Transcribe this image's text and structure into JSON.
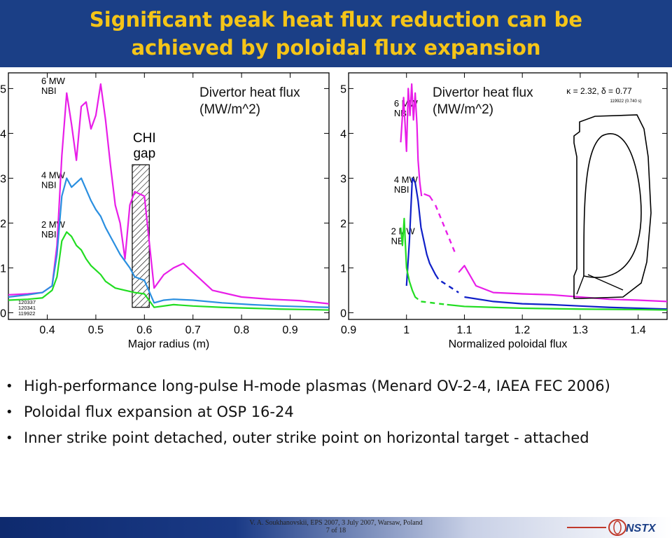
{
  "slide": {
    "title_line1": "Significant peak heat flux reduction can be",
    "title_line2": "achieved by poloidal flux expansion",
    "bullets": [
      "High-performance long-pulse H-mode plasmas (Menard OV-2-4, IAEA FEC 2006)",
      "Poloidal flux expansion at OSP 16-24",
      "Inner strike point detached, outer strike point on horizontal target - attached"
    ],
    "footer_line1": "V. A. Soukhanovskii, EPS 2007, 3 July 2007, Warsaw, Poland",
    "footer_line2": "7 of 18",
    "logo_text": "NSTX"
  },
  "colors": {
    "title_bg": "#1b3f86",
    "title_fg": "#f5c518",
    "magenta": "#e81ee8",
    "blue": "#2a8fe0",
    "darkblue": "#1020c8",
    "green": "#22dd22"
  },
  "chart_data": [
    {
      "type": "line",
      "title": "Divertor heat flux\n(MW/m^2)",
      "xlabel": "Major radius (m)",
      "ylabel": "",
      "xlim": [
        0.32,
        0.98
      ],
      "ylim": [
        -0.15,
        5.35
      ],
      "xticks": [
        0.4,
        0.5,
        0.6,
        0.7,
        0.8,
        0.9
      ],
      "yticks": [
        0,
        1,
        2,
        3,
        4,
        5
      ],
      "shot_labels": [
        "120337",
        "120341",
        "119922"
      ],
      "annotations": [
        {
          "text": "CHI\ngap",
          "x": 0.6,
          "y": 3.8
        },
        {
          "text": "6 MW\nNBI",
          "x": 0.33,
          "y": 5.1
        },
        {
          "text": "4 MW\nNBI",
          "x": 0.33,
          "y": 3.0
        },
        {
          "text": "2 MW\nNBI",
          "x": 0.33,
          "y": 1.9
        }
      ],
      "hatched_region": {
        "x0": 0.575,
        "x1": 0.61,
        "y0": 0.12,
        "y1": 3.3
      },
      "series": [
        {
          "name": "6 MW NBI",
          "color": "#e81ee8",
          "x": [
            0.32,
            0.36,
            0.39,
            0.41,
            0.42,
            0.43,
            0.44,
            0.45,
            0.46,
            0.47,
            0.48,
            0.49,
            0.5,
            0.51,
            0.52,
            0.53,
            0.54,
            0.55,
            0.56,
            0.57,
            0.58,
            0.6,
            0.62,
            0.64,
            0.66,
            0.68,
            0.7,
            0.74,
            0.8,
            0.86,
            0.92,
            0.98
          ],
          "y": [
            0.4,
            0.42,
            0.45,
            0.6,
            1.5,
            3.5,
            4.9,
            4.2,
            3.4,
            4.6,
            4.7,
            4.1,
            4.4,
            5.1,
            4.3,
            3.3,
            2.4,
            2.0,
            1.2,
            2.4,
            2.7,
            2.6,
            0.55,
            0.85,
            1.0,
            1.1,
            0.9,
            0.5,
            0.35,
            0.3,
            0.27,
            0.2
          ]
        },
        {
          "name": "4 MW NBI",
          "color": "#2a8fe0",
          "x": [
            0.32,
            0.36,
            0.39,
            0.41,
            0.42,
            0.43,
            0.44,
            0.45,
            0.46,
            0.47,
            0.48,
            0.49,
            0.5,
            0.51,
            0.52,
            0.53,
            0.54,
            0.55,
            0.56,
            0.57,
            0.58,
            0.6,
            0.62,
            0.64,
            0.66,
            0.7,
            0.76,
            0.82,
            0.88,
            0.94,
            0.98
          ],
          "y": [
            0.35,
            0.4,
            0.45,
            0.6,
            1.3,
            2.6,
            3.0,
            2.8,
            2.9,
            3.0,
            2.75,
            2.5,
            2.3,
            2.15,
            1.9,
            1.7,
            1.5,
            1.3,
            1.15,
            1.0,
            0.8,
            0.72,
            0.22,
            0.28,
            0.3,
            0.28,
            0.22,
            0.18,
            0.15,
            0.13,
            0.12
          ]
        },
        {
          "name": "2 MW NBI",
          "color": "#22dd22",
          "x": [
            0.32,
            0.36,
            0.39,
            0.41,
            0.42,
            0.43,
            0.44,
            0.45,
            0.46,
            0.47,
            0.48,
            0.49,
            0.5,
            0.51,
            0.52,
            0.54,
            0.56,
            0.58,
            0.6,
            0.62,
            0.66,
            0.7,
            0.76,
            0.82,
            0.88,
            0.94,
            0.98
          ],
          "y": [
            0.28,
            0.3,
            0.33,
            0.5,
            0.8,
            1.6,
            1.8,
            1.7,
            1.5,
            1.4,
            1.2,
            1.05,
            0.95,
            0.85,
            0.7,
            0.55,
            0.5,
            0.45,
            0.42,
            0.12,
            0.18,
            0.15,
            0.12,
            0.1,
            0.08,
            0.07,
            0.06
          ]
        }
      ]
    },
    {
      "type": "line",
      "title": "Divertor heat flux\n(MW/m^2)",
      "xlabel": "Normalized poloidal flux",
      "ylabel": "",
      "xlim": [
        0.9,
        1.45
      ],
      "ylim": [
        -0.15,
        5.35
      ],
      "xticks": [
        0.9,
        1.0,
        1.1,
        1.2,
        1.3,
        1.4
      ],
      "yticks": [
        0,
        1,
        2,
        3,
        4,
        5
      ],
      "inset_label": "κ = 2.32, δ = 0.77",
      "inset_sublabel": "119922 (0.740 s)",
      "annotations": [
        {
          "text": "6 MW\nNBI",
          "x": 0.93,
          "y": 4.6
        },
        {
          "text": "4 MW\nNBI",
          "x": 0.93,
          "y": 2.9
        },
        {
          "text": "2 MW\nNBI",
          "x": 0.925,
          "y": 1.75
        }
      ],
      "series": [
        {
          "name": "6 MW NBI",
          "color": "#e81ee8",
          "x": [
            0.99,
            0.995,
            1.0,
            1.003,
            1.006,
            1.009,
            1.012,
            1.015,
            1.018,
            1.02,
            1.023,
            1.026
          ],
          "y": [
            3.8,
            4.8,
            3.6,
            5.0,
            4.4,
            5.1,
            4.3,
            4.9,
            4.2,
            3.4,
            2.9,
            2.6
          ],
          "x_cont": [
            1.03,
            1.04,
            1.045
          ],
          "y_cont": [
            2.65,
            2.6,
            2.5
          ],
          "x_dash": [
            1.05,
            1.085
          ],
          "y_dash": [
            2.4,
            1.3
          ],
          "x_tail": [
            1.09,
            1.1,
            1.12,
            1.15,
            1.2,
            1.25,
            1.3,
            1.35,
            1.4,
            1.45
          ],
          "y_tail": [
            0.9,
            1.05,
            0.6,
            0.45,
            0.42,
            0.4,
            0.35,
            0.3,
            0.28,
            0.25
          ]
        },
        {
          "name": "4 MW NBI",
          "color": "#1020c8",
          "x": [
            1.0,
            1.005,
            1.01,
            1.015,
            1.02,
            1.025,
            1.03,
            1.035,
            1.04,
            1.05,
            1.055
          ],
          "y": [
            0.6,
            1.6,
            3.0,
            2.9,
            2.5,
            1.9,
            1.6,
            1.3,
            1.1,
            0.85,
            0.75
          ],
          "x_dash": [
            1.06,
            1.09
          ],
          "y_dash": [
            0.7,
            0.45
          ],
          "x_tail": [
            1.1,
            1.15,
            1.2,
            1.25,
            1.3,
            1.35,
            1.4,
            1.45
          ],
          "y_tail": [
            0.35,
            0.25,
            0.2,
            0.18,
            0.15,
            0.12,
            0.1,
            0.08
          ]
        },
        {
          "name": "2 MW NBI",
          "color": "#22dd22",
          "x": [
            0.99,
            0.993,
            0.996,
            1.0,
            1.005,
            1.01,
            1.015,
            1.02
          ],
          "y": [
            1.9,
            1.5,
            2.1,
            1.0,
            0.7,
            0.5,
            0.35,
            0.3
          ],
          "x_dash": [
            1.025,
            1.07
          ],
          "y_dash": [
            0.25,
            0.18
          ],
          "x_tail": [
            1.07,
            1.1,
            1.15,
            1.2,
            1.3,
            1.4,
            1.45
          ],
          "y_tail": [
            0.18,
            0.14,
            0.12,
            0.1,
            0.08,
            0.07,
            0.06
          ]
        }
      ]
    }
  ]
}
